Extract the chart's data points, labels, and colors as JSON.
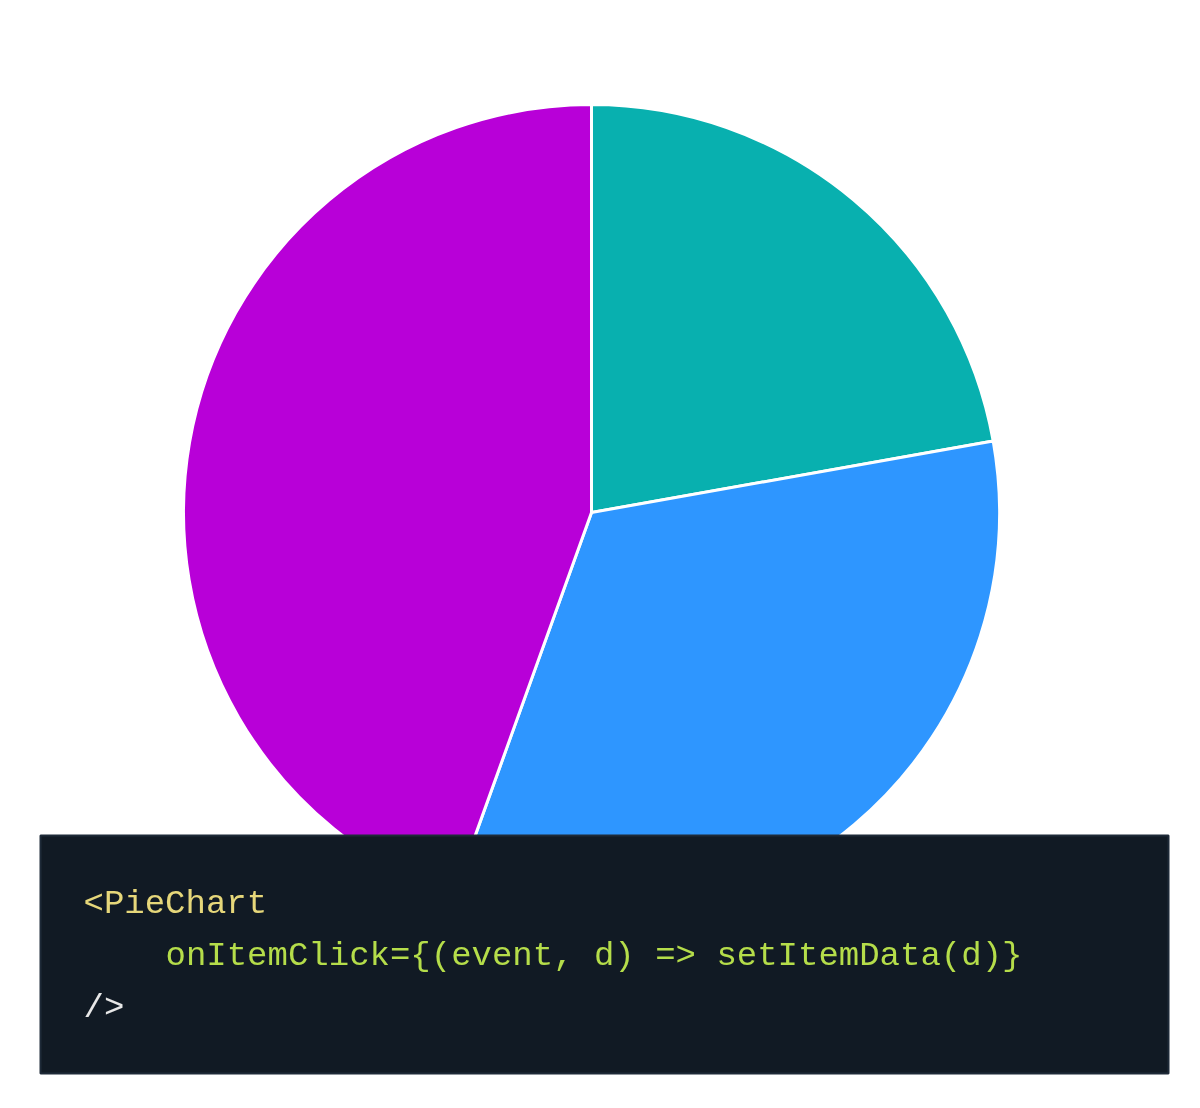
{
  "chart_data": {
    "type": "pie",
    "categories": [
      null,
      null,
      null
    ],
    "values": [
      22.2,
      33.3,
      44.5
    ],
    "colors": [
      "#08b0af",
      "#2e96ff",
      "#b800d8"
    ],
    "annotations": [
      "<PieChart",
      "onItemClick={(event, d) => setItemData(d)}",
      "/>"
    ]
  }
}
